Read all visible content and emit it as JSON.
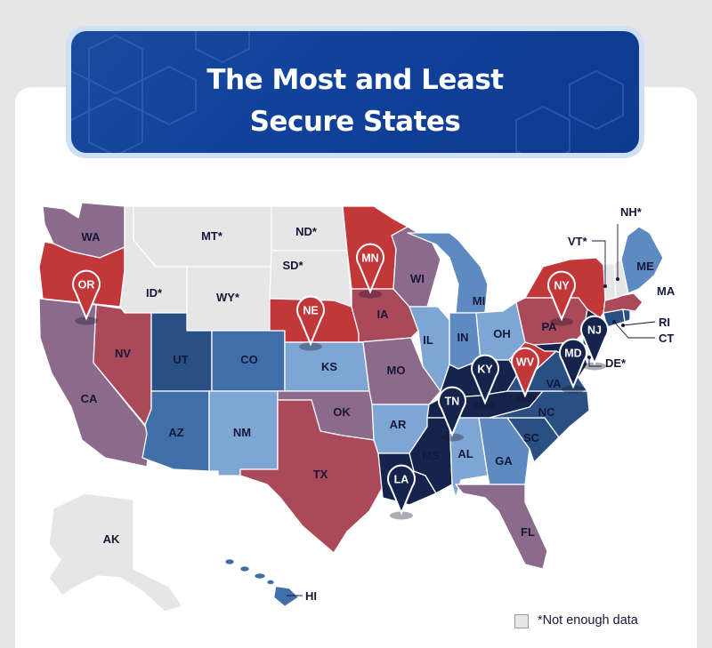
{
  "title": {
    "line1": "The Most and Least",
    "line2": "Secure States"
  },
  "legend": {
    "label": "*Not enough data",
    "color": "#e6e6e6"
  },
  "colors": {
    "least_secure_pin": "#c1373a",
    "most_secure_pin": "#16244d",
    "no_data": "#e6e6e6",
    "dark_red": "#c1373a",
    "red": "#a9495a",
    "mauve": "#8c6a8c",
    "pale_blue": "#7ea6d4",
    "light_blue": "#5e8ac2",
    "mid_blue": "#3f6ea8",
    "navy_blue": "#2a4f83",
    "dark_navy": "#16244d"
  },
  "states": [
    {
      "id": "WA",
      "label": "WA",
      "color": "#8c6a8c"
    },
    {
      "id": "OR",
      "label": "OR",
      "color": "#c1373a"
    },
    {
      "id": "CA",
      "label": "CA",
      "color": "#8c6a8c"
    },
    {
      "id": "NV",
      "label": "NV",
      "color": "#a9495a"
    },
    {
      "id": "ID",
      "label": "ID*",
      "color": "#e6e6e6"
    },
    {
      "id": "MT",
      "label": "MT*",
      "color": "#e6e6e6"
    },
    {
      "id": "WY",
      "label": "WY*",
      "color": "#e6e6e6"
    },
    {
      "id": "UT",
      "label": "UT",
      "color": "#2a4f83"
    },
    {
      "id": "CO",
      "label": "CO",
      "color": "#3f6ea8"
    },
    {
      "id": "AZ",
      "label": "AZ",
      "color": "#3f6ea8"
    },
    {
      "id": "NM",
      "label": "NM",
      "color": "#7ea6d4"
    },
    {
      "id": "ND",
      "label": "ND*",
      "color": "#e6e6e6"
    },
    {
      "id": "SD",
      "label": "SD*",
      "color": "#e6e6e6"
    },
    {
      "id": "NE",
      "label": "NE",
      "color": "#c1373a"
    },
    {
      "id": "KS",
      "label": "KS",
      "color": "#7ea6d4"
    },
    {
      "id": "OK",
      "label": "OK",
      "color": "#8c6a8c"
    },
    {
      "id": "TX",
      "label": "TX",
      "color": "#a9495a"
    },
    {
      "id": "MN",
      "label": "MN",
      "color": "#c1373a"
    },
    {
      "id": "IA",
      "label": "IA",
      "color": "#a9495a"
    },
    {
      "id": "MO",
      "label": "MO",
      "color": "#8c6a8c"
    },
    {
      "id": "AR",
      "label": "AR",
      "color": "#7ea6d4"
    },
    {
      "id": "LA",
      "label": "LA",
      "color": "#16244d"
    },
    {
      "id": "WI",
      "label": "WI",
      "color": "#8c6a8c"
    },
    {
      "id": "IL",
      "label": "IL",
      "color": "#7ea6d4"
    },
    {
      "id": "MI",
      "label": "MI",
      "color": "#5e8ac2"
    },
    {
      "id": "IN",
      "label": "IN",
      "color": "#5e8ac2"
    },
    {
      "id": "OH",
      "label": "OH",
      "color": "#7ea6d4"
    },
    {
      "id": "KY",
      "label": "KY",
      "color": "#16244d"
    },
    {
      "id": "TN",
      "label": "TN",
      "color": "#16244d"
    },
    {
      "id": "MS",
      "label": "MS",
      "color": "#16244d"
    },
    {
      "id": "AL",
      "label": "AL",
      "color": "#7ea6d4"
    },
    {
      "id": "GA",
      "label": "GA",
      "color": "#5e8ac2"
    },
    {
      "id": "FL",
      "label": "FL",
      "color": "#8c6a8c"
    },
    {
      "id": "SC",
      "label": "SC",
      "color": "#2a4f83"
    },
    {
      "id": "NC",
      "label": "NC",
      "color": "#2a4f83"
    },
    {
      "id": "VA",
      "label": "VA",
      "color": "#2a4f83"
    },
    {
      "id": "WV",
      "label": "WV",
      "color": "#c1373a"
    },
    {
      "id": "PA",
      "label": "PA",
      "color": "#a9495a"
    },
    {
      "id": "NY",
      "label": "NY",
      "color": "#c1373a"
    },
    {
      "id": "NJ",
      "label": "NJ",
      "color": "#16244d"
    },
    {
      "id": "MD",
      "label": "MD",
      "color": "#16244d"
    },
    {
      "id": "DE",
      "label": "DE*",
      "color": "#e6e6e6"
    },
    {
      "id": "CT",
      "label": "CT",
      "color": "#2a4f83"
    },
    {
      "id": "RI",
      "label": "RI",
      "color": "#2a4f83"
    },
    {
      "id": "MA",
      "label": "MA",
      "color": "#a9495a"
    },
    {
      "id": "VT",
      "label": "VT*",
      "color": "#e6e6e6"
    },
    {
      "id": "NH",
      "label": "NH*",
      "color": "#e6e6e6"
    },
    {
      "id": "ME",
      "label": "ME",
      "color": "#5e8ac2"
    },
    {
      "id": "AK",
      "label": "AK",
      "color": "#e6e6e6"
    },
    {
      "id": "HI",
      "label": "HI",
      "color": "#3f6ea8"
    }
  ],
  "pins": [
    {
      "state": "OR",
      "label": "OR",
      "group": "least"
    },
    {
      "state": "NE",
      "label": "NE",
      "group": "least"
    },
    {
      "state": "MN",
      "label": "MN",
      "group": "least"
    },
    {
      "state": "NY",
      "label": "NY",
      "group": "least"
    },
    {
      "state": "WV",
      "label": "WV",
      "group": "least"
    },
    {
      "state": "NJ",
      "label": "NJ",
      "group": "most"
    },
    {
      "state": "MD",
      "label": "MD",
      "group": "most"
    },
    {
      "state": "KY",
      "label": "KY",
      "group": "most"
    },
    {
      "state": "TN",
      "label": "TN",
      "group": "most"
    },
    {
      "state": "LA",
      "label": "LA",
      "group": "most"
    }
  ]
}
